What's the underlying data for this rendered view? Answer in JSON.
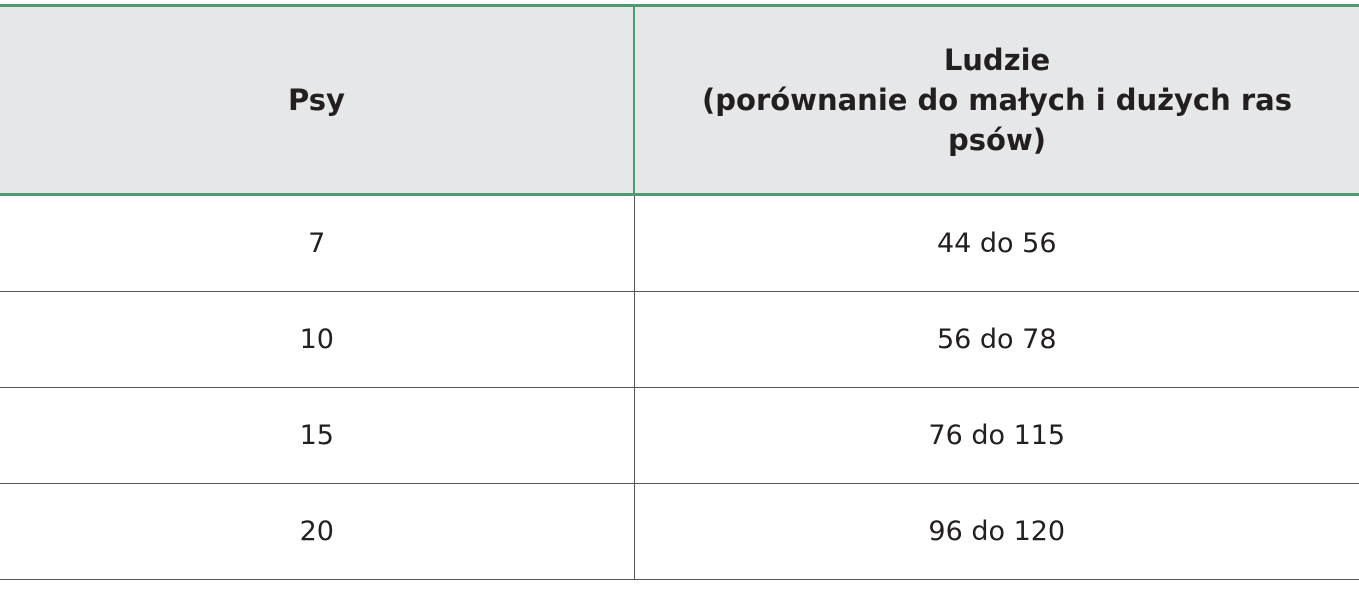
{
  "table": {
    "headers": [
      "Psy",
      "Ludzie\n(porównanie do małych i dużych ras psów)"
    ],
    "header_line1": "Ludzie",
    "header_line2": "(porównanie do małych i dużych ras psów)",
    "rows": [
      [
        "7",
        "44 do 56"
      ],
      [
        "10",
        "56 do 78"
      ],
      [
        "15",
        "76 do 115"
      ],
      [
        "20",
        "96 do 120"
      ]
    ]
  },
  "colors": {
    "accent": "#4f9a6e",
    "header_bg": "#e6e7e8"
  }
}
